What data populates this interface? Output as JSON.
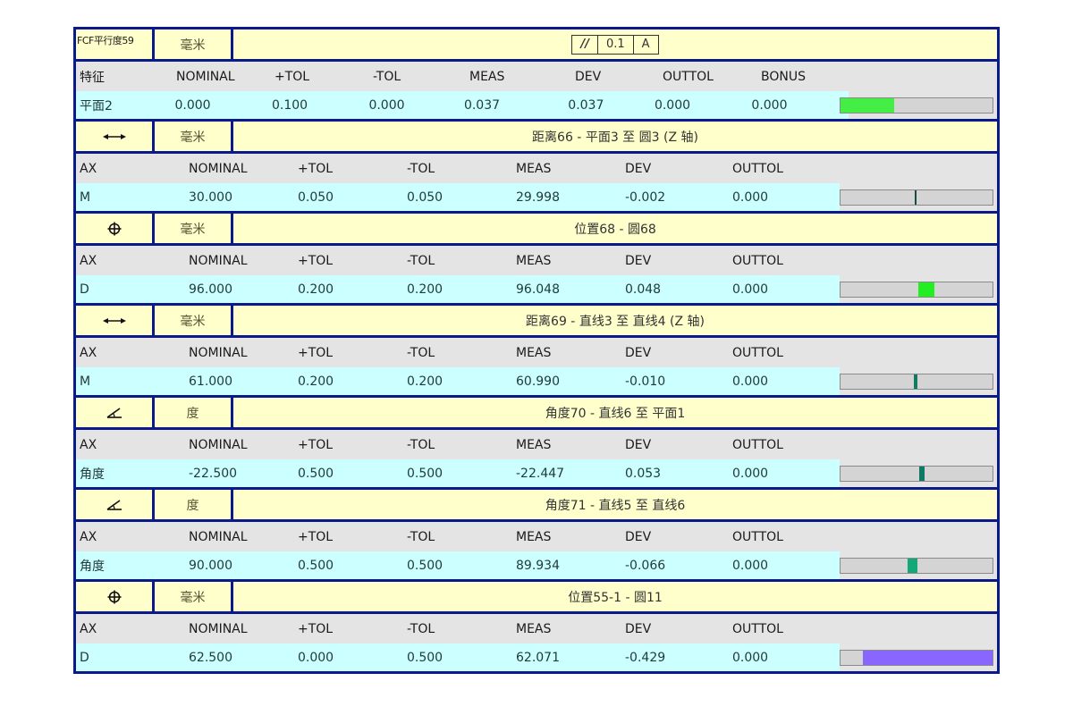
{
  "fcf_block": {
    "label": "FCF平行度59",
    "unit": "毫米",
    "frame": {
      "symbol": "//",
      "tolerance": "0.1",
      "datum": "A"
    },
    "columns": [
      "特征",
      "NOMINAL",
      "+TOL",
      "-TOL",
      "MEAS",
      "DEV",
      "OUTTOL",
      "BONUS"
    ],
    "values": [
      "平面2",
      "0.000",
      "0.100",
      "0.000",
      "0.037",
      "0.037",
      "0.000",
      "0.000"
    ],
    "bar": {
      "color": "#44ee44",
      "start_pct": 0,
      "width_pct": 35
    }
  },
  "blocks": [
    {
      "icon": "distance-arrow-icon",
      "unit": "毫米",
      "title": "距离66 - 平面3 至 圆3 (Z 轴)",
      "columns": [
        "AX",
        "NOMINAL",
        "+TOL",
        "-TOL",
        "MEAS",
        "DEV",
        "OUTTOL"
      ],
      "values": [
        "M",
        "30.000",
        "0.050",
        "0.050",
        "29.998",
        "-0.002",
        "0.000"
      ],
      "bar": {
        "color": "#1a4a4a",
        "start_pct": 49,
        "width_pct": 1.2
      }
    },
    {
      "icon": "position-icon",
      "unit": "毫米",
      "title": "位置68 - 圆68",
      "columns": [
        "AX",
        "NOMINAL",
        "+TOL",
        "-TOL",
        "MEAS",
        "DEV",
        "OUTTOL"
      ],
      "values": [
        "D",
        "96.000",
        "0.200",
        "0.200",
        "96.048",
        "0.048",
        "0.000"
      ],
      "bar": {
        "color": "#22ee22",
        "start_pct": 51,
        "width_pct": 11
      }
    },
    {
      "icon": "distance-arrow-icon",
      "unit": "毫米",
      "title": "距离69 - 直线3 至 直线4 (Z 轴)",
      "columns": [
        "AX",
        "NOMINAL",
        "+TOL",
        "-TOL",
        "MEAS",
        "DEV",
        "OUTTOL"
      ],
      "values": [
        "M",
        "61.000",
        "0.200",
        "0.200",
        "60.990",
        "-0.010",
        "0.000"
      ],
      "bar": {
        "color": "#107a68",
        "start_pct": 48.5,
        "width_pct": 2
      }
    },
    {
      "icon": "angle-icon",
      "unit": "度",
      "title": "角度70 - 直线6 至 平面1",
      "columns": [
        "AX",
        "NOMINAL",
        "+TOL",
        "-TOL",
        "MEAS",
        "DEV",
        "OUTTOL"
      ],
      "values": [
        "角度",
        "-22.500",
        "0.500",
        "0.500",
        "-22.447",
        "0.053",
        "0.000"
      ],
      "bar": {
        "color": "#0e7a66",
        "start_pct": 51.5,
        "width_pct": 4
      }
    },
    {
      "icon": "angle-icon",
      "unit": "度",
      "title": "角度71 - 直线5 至 直线6",
      "columns": [
        "AX",
        "NOMINAL",
        "+TOL",
        "-TOL",
        "MEAS",
        "DEV",
        "OUTTOL"
      ],
      "values": [
        "角度",
        "90.000",
        "0.500",
        "0.500",
        "89.934",
        "-0.066",
        "0.000"
      ],
      "bar": {
        "color": "#12a878",
        "start_pct": 44,
        "width_pct": 6.5
      }
    },
    {
      "icon": "position-icon",
      "unit": "毫米",
      "title": "位置55-1 - 圆11",
      "columns": [
        "AX",
        "NOMINAL",
        "+TOL",
        "-TOL",
        "MEAS",
        "DEV",
        "OUTTOL"
      ],
      "values": [
        "D",
        "62.500",
        "0.000",
        "0.500",
        "62.071",
        "-0.429",
        "0.000"
      ],
      "bar": {
        "color": "#8866ff",
        "start_pct": 14.5,
        "width_pct": 85.5
      }
    }
  ]
}
